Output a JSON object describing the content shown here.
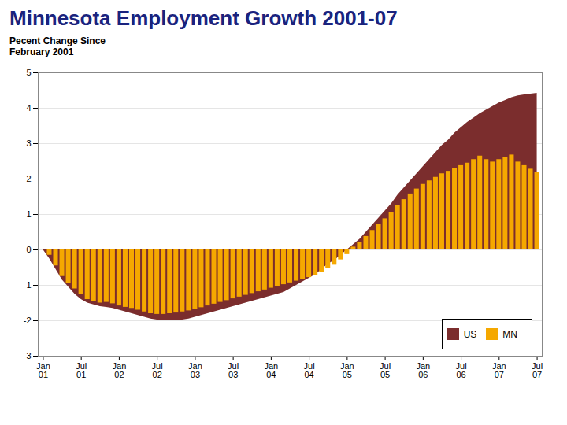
{
  "chart_data": {
    "type": "bar",
    "title": "Minnesota Employment Growth 2001-07",
    "ylabel": "Pecent Change Since\nFebruary 2001",
    "categories": [
      "Jan\n01",
      null,
      null,
      null,
      null,
      null,
      "Jul\n01",
      null,
      null,
      null,
      null,
      null,
      "Jan\n02",
      null,
      null,
      null,
      null,
      null,
      "Jul\n02",
      null,
      null,
      null,
      null,
      null,
      "Jan\n03",
      null,
      null,
      null,
      null,
      null,
      "Jul\n03",
      null,
      null,
      null,
      null,
      null,
      "Jan\n04",
      null,
      null,
      null,
      null,
      null,
      "Jul\n04",
      null,
      null,
      null,
      null,
      null,
      "Jan\n05",
      null,
      null,
      null,
      null,
      null,
      "Jul\n05",
      null,
      null,
      null,
      null,
      null,
      "Jan\n06",
      null,
      null,
      null,
      null,
      null,
      "Jul\n06",
      null,
      null,
      null,
      null,
      null,
      "Jan\n07",
      null,
      null,
      null,
      null,
      null,
      "Jul\n07"
    ],
    "series": [
      {
        "name": "US",
        "type": "area",
        "color": "#7b2d2d",
        "values": [
          0.0,
          -0.25,
          -0.55,
          -0.85,
          -1.05,
          -1.25,
          -1.4,
          -1.5,
          -1.55,
          -1.6,
          -1.62,
          -1.65,
          -1.7,
          -1.75,
          -1.8,
          -1.85,
          -1.9,
          -1.95,
          -1.98,
          -2.0,
          -2.0,
          -2.0,
          -1.98,
          -1.95,
          -1.9,
          -1.85,
          -1.8,
          -1.75,
          -1.7,
          -1.65,
          -1.6,
          -1.55,
          -1.5,
          -1.45,
          -1.4,
          -1.35,
          -1.3,
          -1.25,
          -1.2,
          -1.1,
          -1.0,
          -0.9,
          -0.8,
          -0.7,
          -0.55,
          -0.4,
          -0.3,
          -0.15,
          0.0,
          0.15,
          0.3,
          0.5,
          0.7,
          0.9,
          1.1,
          1.3,
          1.55,
          1.75,
          1.95,
          2.15,
          2.35,
          2.55,
          2.75,
          2.95,
          3.1,
          3.3,
          3.45,
          3.6,
          3.72,
          3.85,
          3.95,
          4.05,
          4.15,
          4.22,
          4.3,
          4.35,
          4.38,
          4.4,
          4.42
        ]
      },
      {
        "name": "MN",
        "type": "bar",
        "color": "#f5a800",
        "values": [
          0.0,
          -0.15,
          -0.45,
          -0.75,
          -0.95,
          -1.1,
          -1.25,
          -1.4,
          -1.45,
          -1.5,
          -1.48,
          -1.52,
          -1.58,
          -1.62,
          -1.65,
          -1.7,
          -1.75,
          -1.8,
          -1.82,
          -1.82,
          -1.8,
          -1.78,
          -1.75,
          -1.72,
          -1.68,
          -1.63,
          -1.58,
          -1.53,
          -1.48,
          -1.43,
          -1.38,
          -1.33,
          -1.28,
          -1.23,
          -1.18,
          -1.13,
          -1.08,
          -1.03,
          -0.98,
          -0.93,
          -0.88,
          -0.83,
          -0.78,
          -0.73,
          -0.63,
          -0.53,
          -0.43,
          -0.28,
          -0.13,
          0.08,
          0.22,
          0.38,
          0.55,
          0.72,
          0.88,
          1.05,
          1.25,
          1.42,
          1.58,
          1.72,
          1.85,
          1.95,
          2.05,
          2.15,
          2.22,
          2.3,
          2.38,
          2.45,
          2.55,
          2.65,
          2.55,
          2.48,
          2.55,
          2.62,
          2.68,
          2.48,
          2.38,
          2.28,
          2.18
        ]
      }
    ],
    "ylim": [
      -3,
      5
    ],
    "yticks": [
      -3,
      -2,
      -1,
      0,
      1,
      2,
      3,
      4,
      5
    ],
    "grid": true,
    "legend": "lower right"
  }
}
